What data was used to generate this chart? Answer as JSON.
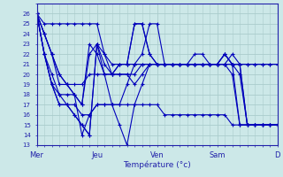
{
  "xlabel": "Température (°c)",
  "background_color": "#cce8e8",
  "grid_color": "#aacccc",
  "line_color": "#0000bb",
  "ylim": [
    13,
    27
  ],
  "yticks": [
    13,
    14,
    15,
    16,
    17,
    18,
    19,
    20,
    21,
    22,
    23,
    24,
    25,
    26
  ],
  "day_labels": [
    "Mer",
    "Jeu",
    "Ven",
    "Sam",
    "D"
  ],
  "day_positions": [
    0,
    8,
    16,
    24,
    32
  ],
  "total_steps": 32,
  "series": [
    [
      26,
      25,
      25,
      25,
      25,
      25,
      25,
      25,
      25,
      22,
      21,
      21,
      21,
      21,
      22,
      25,
      25,
      21,
      21,
      21,
      21,
      21,
      21,
      21,
      21,
      22,
      21,
      21,
      21,
      21,
      21,
      21,
      21
    ],
    [
      26,
      22,
      19,
      18,
      17,
      17,
      16,
      16,
      17,
      17,
      17,
      17,
      17,
      17,
      17,
      17,
      17,
      16,
      16,
      16,
      16,
      16,
      16,
      16,
      16,
      16,
      15,
      15,
      15,
      15,
      15,
      15,
      15
    ],
    [
      26,
      22,
      19,
      17,
      17,
      16,
      15,
      14,
      23,
      22,
      20,
      20,
      20,
      19,
      20,
      21,
      21,
      21,
      21,
      21,
      21,
      21,
      21,
      21,
      21,
      21,
      21,
      20,
      15,
      15,
      15,
      15,
      15
    ],
    [
      26,
      24,
      22,
      20,
      19,
      18,
      17,
      22,
      23,
      20,
      20,
      21,
      21,
      25,
      25,
      22,
      21,
      21,
      21,
      21,
      21,
      21,
      21,
      21,
      21,
      21,
      22,
      21,
      21,
      21,
      21,
      21,
      21
    ],
    [
      26,
      24,
      22,
      19,
      19,
      19,
      19,
      20,
      20,
      20,
      17,
      15,
      13,
      17,
      19,
      21,
      21,
      21,
      21,
      21,
      21,
      21,
      21,
      21,
      21,
      21,
      21,
      21,
      15,
      15,
      15,
      15,
      15
    ],
    [
      26,
      22,
      20,
      18,
      18,
      18,
      14,
      16,
      17,
      17,
      17,
      17,
      19,
      21,
      21,
      21,
      21,
      21,
      21,
      21,
      21,
      22,
      22,
      21,
      21,
      22,
      21,
      15,
      15,
      15,
      15,
      15,
      15
    ],
    [
      26,
      22,
      19,
      17,
      17,
      16,
      15,
      14,
      23,
      21,
      20,
      20,
      20,
      20,
      21,
      21,
      21,
      21,
      21,
      21,
      21,
      21,
      21,
      21,
      21,
      21,
      20,
      15,
      15,
      15,
      15,
      15,
      15
    ],
    [
      26,
      24,
      22,
      20,
      19,
      18,
      17,
      23,
      22,
      20,
      20,
      21,
      21,
      25,
      25,
      22,
      21,
      21,
      21,
      21,
      21,
      21,
      21,
      21,
      21,
      22,
      21,
      21,
      15,
      15,
      15,
      15,
      15
    ]
  ]
}
